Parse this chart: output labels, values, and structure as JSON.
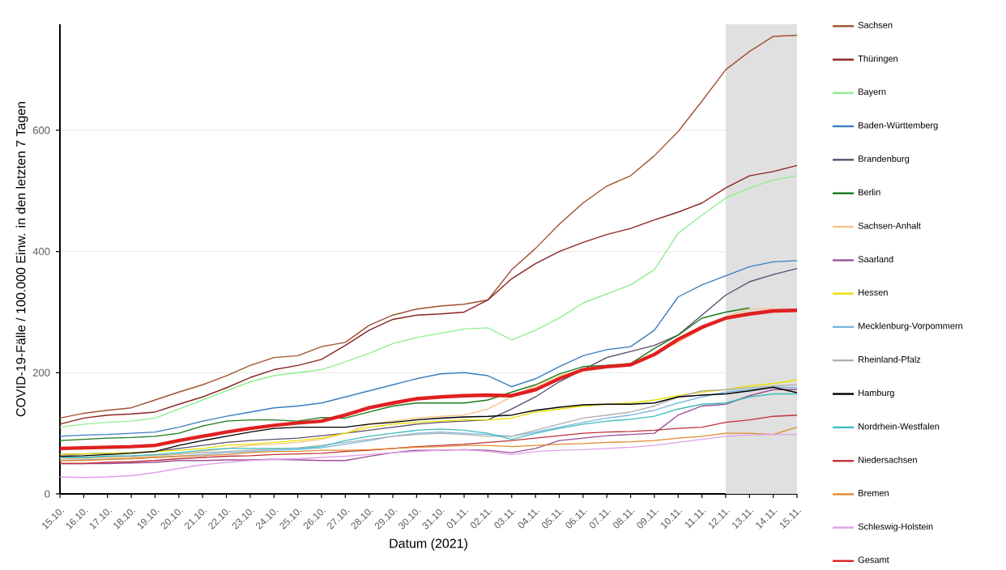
{
  "chart_data": {
    "type": "line",
    "xlabel": "Datum (2021)",
    "ylabel": "COVID-19-Fälle / 100.000 Einw. in den letzten 7 Tagen",
    "categories": [
      "15.10.",
      "16.10.",
      "17.10.",
      "18.10.",
      "19.10.",
      "20.10.",
      "21.10.",
      "22.10.",
      "23.10.",
      "24.10.",
      "25.10.",
      "26.10.",
      "27.10.",
      "28.10.",
      "29.10.",
      "30.10.",
      "31.10.",
      "01.11.",
      "02.11.",
      "03.11.",
      "04.11.",
      "05.11.",
      "06.11.",
      "07.11.",
      "08.11.",
      "09.11.",
      "10.11.",
      "11.11.",
      "12.11.",
      "13.11.",
      "14.11.",
      "15.11."
    ],
    "ylim": [
      0,
      775
    ],
    "yticks": [
      0,
      200,
      400,
      600
    ],
    "grid": "y",
    "legend": "right",
    "bands": [
      {
        "axis": "x",
        "from": "12.11.",
        "to": "15.11.",
        "color": "#e0e0e0"
      }
    ],
    "series": [
      {
        "name": "Sachsen",
        "color": "#a0522d",
        "values": [
          125,
          133,
          138,
          142,
          155,
          168,
          180,
          195,
          212,
          225,
          228,
          243,
          250,
          278,
          295,
          305,
          310,
          313,
          320,
          370,
          405,
          445,
          480,
          508,
          525,
          558,
          598,
          648,
          700,
          730,
          755,
          757
        ]
      },
      {
        "name": "Thüringen",
        "color": "#8b2323",
        "values": [
          115,
          125,
          130,
          132,
          135,
          148,
          160,
          175,
          192,
          205,
          212,
          222,
          245,
          270,
          288,
          295,
          297,
          300,
          320,
          355,
          380,
          400,
          415,
          428,
          438,
          452,
          465,
          480,
          505,
          525,
          532,
          542
        ]
      },
      {
        "name": "Bayern",
        "color": "#90ee90",
        "values": [
          110,
          115,
          118,
          120,
          125,
          140,
          155,
          170,
          185,
          195,
          200,
          205,
          218,
          232,
          248,
          258,
          265,
          272,
          274,
          254,
          270,
          290,
          315,
          330,
          345,
          370,
          430,
          460,
          488,
          505,
          518,
          525
        ]
      },
      {
        "name": "Baden-Württemberg",
        "color": "#3a7fc1",
        "values": [
          95,
          97,
          98,
          100,
          102,
          110,
          120,
          128,
          135,
          142,
          145,
          150,
          160,
          170,
          180,
          190,
          198,
          200,
          195,
          177,
          190,
          210,
          228,
          238,
          243,
          270,
          325,
          345,
          360,
          375,
          383,
          385
        ]
      },
      {
        "name": "Brandenburg",
        "color": "#5d4e6d",
        "values": [
          65,
          66,
          67,
          68,
          70,
          75,
          80,
          85,
          88,
          90,
          92,
          96,
          100,
          105,
          110,
          115,
          118,
          120,
          122,
          140,
          160,
          185,
          205,
          225,
          235,
          245,
          262,
          295,
          328,
          350,
          362,
          372
        ]
      },
      {
        "name": "Berlin",
        "color": "#1a7a1a",
        "values": [
          88,
          90,
          92,
          93,
          95,
          100,
          112,
          120,
          122,
          122,
          120,
          126,
          125,
          135,
          145,
          150,
          150,
          150,
          155,
          168,
          180,
          198,
          210,
          212,
          215,
          240,
          262,
          290,
          300,
          307,
          null,
          null
        ]
      },
      {
        "name": "Sachsen-Anhalt",
        "color": "#f4c48a",
        "values": [
          58,
          58,
          60,
          60,
          62,
          65,
          70,
          75,
          80,
          82,
          85,
          90,
          100,
          115,
          120,
          125,
          128,
          130,
          140,
          160,
          178,
          195,
          205,
          210,
          212,
          232,
          250,
          272,
          292,
          305,
          306,
          null
        ]
      },
      {
        "name": "Saarland",
        "color": "#9b4f96",
        "values": [
          50,
          50,
          50,
          51,
          52,
          55,
          55,
          56,
          56,
          57,
          56,
          55,
          55,
          62,
          68,
          72,
          72,
          73,
          72,
          68,
          75,
          88,
          92,
          96,
          98,
          100,
          130,
          145,
          148,
          162,
          172,
          172
        ]
      },
      {
        "name": "Hessen",
        "color": "#e8e000",
        "values": [
          65,
          66,
          67,
          68,
          70,
          72,
          75,
          80,
          82,
          85,
          88,
          92,
          100,
          110,
          115,
          118,
          120,
          122,
          122,
          125,
          135,
          140,
          145,
          148,
          150,
          155,
          162,
          168,
          172,
          178,
          182,
          188
        ]
      },
      {
        "name": "Mecklenburg-Vorpommern",
        "color": "#7ab8e0",
        "values": [
          55,
          56,
          57,
          58,
          60,
          62,
          65,
          68,
          70,
          72,
          73,
          76,
          82,
          88,
          95,
          100,
          102,
          100,
          98,
          95,
          102,
          110,
          118,
          125,
          130,
          138,
          150,
          160,
          168,
          172,
          176,
          175
        ]
      },
      {
        "name": "Rheinland-Pfalz",
        "color": "#b0b0b0",
        "values": [
          60,
          60,
          62,
          62,
          64,
          66,
          68,
          70,
          72,
          74,
          76,
          80,
          85,
          90,
          95,
          98,
          100,
          98,
          95,
          95,
          105,
          115,
          125,
          130,
          135,
          145,
          160,
          170,
          172,
          175,
          178,
          180
        ]
      },
      {
        "name": "Hamburg",
        "color": "#000000",
        "values": [
          62,
          63,
          65,
          67,
          70,
          80,
          88,
          95,
          102,
          108,
          110,
          110,
          110,
          115,
          118,
          122,
          125,
          127,
          128,
          130,
          138,
          143,
          147,
          148,
          148,
          150,
          160,
          163,
          165,
          170,
          176,
          167
        ]
      },
      {
        "name": "Nordrhein-Westfalen",
        "color": "#3cbcbc",
        "values": [
          60,
          60,
          62,
          63,
          65,
          68,
          72,
          75,
          75,
          75,
          75,
          78,
          88,
          95,
          100,
          105,
          107,
          105,
          100,
          90,
          100,
          108,
          115,
          120,
          123,
          128,
          140,
          148,
          150,
          160,
          165,
          165
        ]
      },
      {
        "name": "Niedersachsen",
        "color": "#c0303a",
        "values": [
          50,
          50,
          52,
          53,
          55,
          58,
          60,
          62,
          63,
          65,
          66,
          67,
          70,
          72,
          75,
          78,
          80,
          82,
          85,
          88,
          92,
          96,
          100,
          102,
          103,
          105,
          108,
          110,
          118,
          122,
          128,
          130
        ]
      },
      {
        "name": "Bremen",
        "color": "#e08a2c",
        "values": [
          55,
          55,
          57,
          58,
          60,
          62,
          63,
          65,
          68,
          70,
          70,
          72,
          72,
          73,
          75,
          77,
          78,
          80,
          80,
          78,
          80,
          82,
          83,
          85,
          86,
          88,
          92,
          95,
          100,
          100,
          98,
          110
        ]
      },
      {
        "name": "Schleswig-Holstein",
        "color": "#e0a0e8",
        "values": [
          28,
          27,
          28,
          30,
          35,
          42,
          48,
          52,
          55,
          57,
          58,
          60,
          62,
          65,
          68,
          70,
          72,
          73,
          70,
          65,
          70,
          72,
          73,
          75,
          77,
          80,
          85,
          90,
          95,
          97,
          98,
          98
        ]
      },
      {
        "name": "Gesamt",
        "color": "#e02020",
        "values": [
          75,
          76,
          77,
          78,
          80,
          88,
          95,
          102,
          108,
          113,
          117,
          120,
          130,
          142,
          150,
          157,
          160,
          162,
          163,
          162,
          172,
          190,
          205,
          210,
          213,
          230,
          255,
          275,
          290,
          297,
          302,
          303
        ]
      }
    ]
  }
}
